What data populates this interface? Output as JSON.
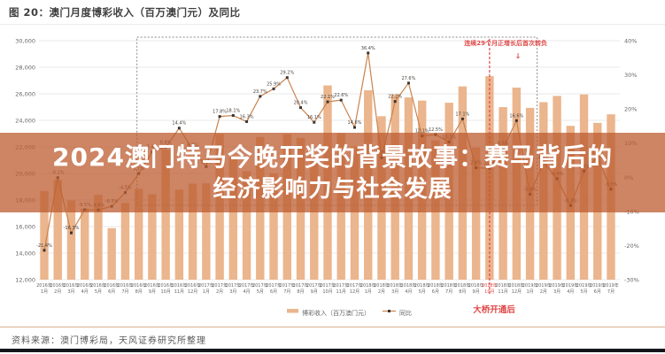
{
  "header": {
    "title": "图 20：澳门月度博彩收入（百万澳门元）及同比"
  },
  "overlay": {
    "line1": "2024澳门特马今晚开奖的背景故事：赛马背后的",
    "line2": "经济影响力与社会发展",
    "bg_color": "#bc5c30",
    "text_color": "#ffffff"
  },
  "footer": {
    "source": "资料来源：澳门博彩局，天风证券研究所整理"
  },
  "annotations": {
    "streak_note": "连续29个月正增长后首次转负",
    "streak_arrow": "↓",
    "bridge_note": "大桥开通后"
  },
  "colors": {
    "bar": "#ebb58d",
    "line": "#c9834e",
    "marker": "#3b3533",
    "grid": "#e9e9e9",
    "axis_text": "#666666",
    "data_label": "#48423d",
    "red": "#e04848",
    "dash_box": "#8a8a8a"
  },
  "chart_data": {
    "type": "bar",
    "title": "澳门月度博彩收入（百万澳门元）及同比",
    "categories": [
      "2016年1月",
      "2016年2月",
      "2016年3月",
      "2016年4月",
      "2016年5月",
      "2016年6月",
      "2016年7月",
      "2016年8月",
      "2016年9月",
      "2016年10月",
      "2016年11月",
      "2016年12月",
      "2017年1月",
      "2017年2月",
      "2017年3月",
      "2017年4月",
      "2017年5月",
      "2017年6月",
      "2017年7月",
      "2017年8月",
      "2017年9月",
      "2017年10月",
      "2017年11月",
      "2017年12月",
      "2018年1月",
      "2018年2月",
      "2018年3月",
      "2018年4月",
      "2018年5月",
      "2018年6月",
      "2018年7月",
      "2018年8月",
      "2018年9月",
      "2018年10月",
      "2018年11月",
      "2018年12月",
      "2019年1月",
      "2019年2月",
      "2019年3月",
      "2019年4月",
      "2019年5月",
      "2019年6月",
      "2019年7月"
    ],
    "series": [
      {
        "name": "博彩收入（百万澳门元）",
        "type": "bar",
        "axis": "left",
        "values": [
          18674,
          19521,
          17980,
          17341,
          18389,
          15880,
          17773,
          18837,
          18435,
          21807,
          18789,
          19233,
          19255,
          22990,
          21232,
          20164,
          22743,
          19992,
          22965,
          22676,
          21408,
          26631,
          23038,
          22041,
          26265,
          24312,
          25952,
          25727,
          25488,
          22490,
          25327,
          26559,
          21952,
          27328,
          24995,
          26468,
          24942,
          25370,
          25840,
          23588,
          25952,
          23812,
          24453
        ]
      },
      {
        "name": "同比",
        "type": "line",
        "axis": "right",
        "values": [
          -21.4,
          -0.1,
          -16.3,
          -9.5,
          -9.6,
          -8.5,
          -4.5,
          1.1,
          7.4,
          8.8,
          14.4,
          8.0,
          3.1,
          17.8,
          18.1,
          16.3,
          23.7,
          25.9,
          29.2,
          20.4,
          16.1,
          22.1,
          22.6,
          14.6,
          36.4,
          5.7,
          22.2,
          27.6,
          12.1,
          12.5,
          10.3,
          17.1,
          2.8,
          2.6,
          8.5,
          16.6,
          -5.0,
          4.4,
          -0.4,
          -8.3,
          1.8,
          5.9,
          -3.5
        ]
      }
    ],
    "left_axis": {
      "min": 12000,
      "max": 30000,
      "step": 2000,
      "tick_labels": [
        "30,000",
        "28,000",
        "26,000",
        "24,000",
        "22,000",
        "20,000",
        "18,000",
        "16,000",
        "14,000",
        "12,000"
      ]
    },
    "right_axis": {
      "min": -30,
      "max": 40,
      "step": 10,
      "tick_labels": [
        "40%",
        "30%",
        "20%",
        "10%",
        "0%",
        "-10%",
        "-20%",
        "-30%"
      ]
    },
    "grid": true,
    "legend_position": "bottom",
    "streak_box": {
      "start_index": 7,
      "end_index": 36
    },
    "bridge_index": 33
  }
}
